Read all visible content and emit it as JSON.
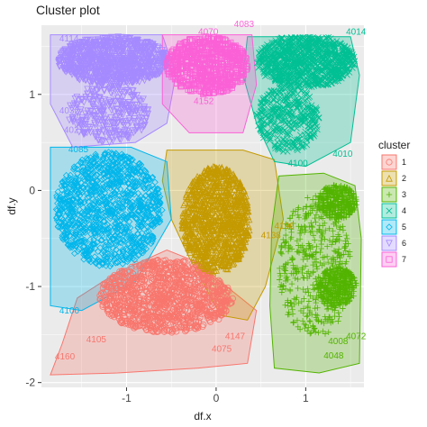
{
  "chart_data": {
    "type": "scatter",
    "title": "Cluster plot",
    "xlabel": "df.x",
    "ylabel": "df.y",
    "xlim": [
      -1.95,
      1.65
    ],
    "ylim": [
      -2.05,
      1.72
    ],
    "x_ticks": [
      -1,
      0,
      1
    ],
    "y_ticks": [
      -2,
      -1,
      0,
      1
    ],
    "x_tick_labels": [
      "-1",
      "0",
      "1"
    ],
    "y_tick_labels": [
      "-2",
      "-1",
      "0",
      "1"
    ],
    "grid": true,
    "panel_background": "#ebebeb",
    "legend": {
      "title": "cluster",
      "position": "right",
      "entries": [
        "1",
        "2",
        "3",
        "4",
        "5",
        "6",
        "7"
      ]
    },
    "series": [
      {
        "name": "1",
        "color": "#F8766D",
        "marker": "circle",
        "hull": [
          [
            -1.55,
            -1.12
          ],
          [
            -1.1,
            -0.85
          ],
          [
            -0.55,
            -0.62
          ],
          [
            -0.2,
            -0.75
          ],
          [
            0.05,
            -0.95
          ],
          [
            0.45,
            -1.25
          ],
          [
            0.35,
            -1.8
          ],
          [
            -0.2,
            -1.85
          ],
          [
            -1.1,
            -1.9
          ],
          [
            -1.85,
            -1.92
          ],
          [
            -1.72,
            -1.6
          ]
        ],
        "labels": [
          {
            "text": "4105",
            "x": -1.45,
            "y": -1.58
          },
          {
            "text": "4160",
            "x": -1.8,
            "y": -1.76
          },
          {
            "text": "4075",
            "x": -0.05,
            "y": -1.68
          },
          {
            "text": "4147",
            "x": 0.1,
            "y": -1.55
          }
        ],
        "clouds": [
          [
            -0.55,
            -1.1,
            0.75,
            0.38,
            1100
          ]
        ]
      },
      {
        "name": "2",
        "color": "#C49A00",
        "marker": "triangle",
        "hull": [
          [
            -0.55,
            0.42
          ],
          [
            0.3,
            0.42
          ],
          [
            0.65,
            0.32
          ],
          [
            0.75,
            -0.3
          ],
          [
            0.55,
            -1.0
          ],
          [
            0.35,
            -1.35
          ],
          [
            0.05,
            -1.3
          ],
          [
            -0.3,
            -0.7
          ],
          [
            -0.5,
            -0.3
          ],
          [
            -0.6,
            0.1
          ]
        ],
        "labels": [
          {
            "text": "4196",
            "x": 0.65,
            "y": -0.4
          },
          {
            "text": "4138",
            "x": 0.5,
            "y": -0.5
          }
        ],
        "clouds": [
          [
            0.0,
            -0.3,
            0.38,
            0.55,
            1000
          ]
        ]
      },
      {
        "name": "3",
        "color": "#53B400",
        "marker": "plus",
        "hull": [
          [
            0.7,
            0.15
          ],
          [
            1.2,
            0.18
          ],
          [
            1.55,
            0.05
          ],
          [
            1.62,
            -0.5
          ],
          [
            1.6,
            -1.8
          ],
          [
            1.15,
            -1.9
          ],
          [
            0.65,
            -1.85
          ],
          [
            0.6,
            -1.2
          ],
          [
            0.62,
            -0.4
          ]
        ],
        "labels": [
          {
            "text": "4072",
            "x": 1.45,
            "y": -1.55
          },
          {
            "text": "4048",
            "x": 1.2,
            "y": -1.75
          },
          {
            "text": "4008",
            "x": 1.25,
            "y": -1.6
          }
        ],
        "clouds": [
          [
            1.1,
            -0.8,
            0.4,
            0.75,
            450
          ],
          [
            1.35,
            -0.12,
            0.22,
            0.18,
            350
          ],
          [
            1.35,
            -1.0,
            0.22,
            0.2,
            350
          ]
        ]
      },
      {
        "name": "4",
        "color": "#00C094",
        "marker": "cross",
        "hull": [
          [
            0.35,
            1.6
          ],
          [
            1.5,
            1.6
          ],
          [
            1.6,
            1.2
          ],
          [
            1.5,
            0.5
          ],
          [
            1.0,
            0.25
          ],
          [
            0.65,
            0.3
          ],
          [
            0.45,
            0.7
          ],
          [
            0.3,
            1.2
          ]
        ],
        "labels": [
          {
            "text": "4014",
            "x": 1.45,
            "y": 1.62
          },
          {
            "text": "4100",
            "x": 0.8,
            "y": 0.25
          },
          {
            "text": "4010",
            "x": 1.3,
            "y": 0.35
          }
        ],
        "clouds": [
          [
            1.0,
            1.35,
            0.55,
            0.28,
            900
          ],
          [
            0.8,
            0.75,
            0.35,
            0.35,
            350
          ]
        ]
      },
      {
        "name": "5",
        "color": "#00B6EB",
        "marker": "diamond",
        "hull": [
          [
            -1.85,
            0.45
          ],
          [
            -0.95,
            0.45
          ],
          [
            -0.55,
            0.3
          ],
          [
            -0.5,
            -0.3
          ],
          [
            -0.9,
            -0.95
          ],
          [
            -1.5,
            -1.25
          ],
          [
            -1.85,
            -1.2
          ]
        ],
        "labels": [
          {
            "text": "4085",
            "x": -1.65,
            "y": 0.4
          },
          {
            "text": "4100",
            "x": -1.75,
            "y": -1.28
          }
        ],
        "clouds": [
          [
            -1.2,
            -0.2,
            0.6,
            0.6,
            1100
          ]
        ]
      },
      {
        "name": "6",
        "color": "#A58AFF",
        "marker": "triangle-down",
        "hull": [
          [
            -1.85,
            1.62
          ],
          [
            -0.6,
            1.62
          ],
          [
            -0.45,
            1.2
          ],
          [
            -0.55,
            0.7
          ],
          [
            -0.9,
            0.5
          ],
          [
            -1.6,
            0.45
          ],
          [
            -1.85,
            0.9
          ]
        ],
        "labels": [
          {
            "text": "4114",
            "x": -1.75,
            "y": 1.55
          },
          {
            "text": "4032",
            "x": -1.75,
            "y": 0.8
          },
          {
            "text": "4021",
            "x": -1.7,
            "y": 0.6
          }
        ],
        "clouds": [
          [
            -1.15,
            1.35,
            0.62,
            0.25,
            1000
          ],
          [
            -1.2,
            0.8,
            0.45,
            0.3,
            300
          ]
        ]
      },
      {
        "name": "7",
        "color": "#FB61D7",
        "marker": "square",
        "hull": [
          [
            -0.6,
            1.62
          ],
          [
            0.4,
            1.62
          ],
          [
            0.45,
            1.1
          ],
          [
            0.3,
            0.6
          ],
          [
            -0.3,
            0.6
          ],
          [
            -0.6,
            0.9
          ]
        ],
        "labels": [
          {
            "text": "4070",
            "x": -0.2,
            "y": 1.62
          },
          {
            "text": "4083",
            "x": 0.2,
            "y": 1.7
          },
          {
            "text": "4152",
            "x": -0.25,
            "y": 0.9
          }
        ],
        "clouds": [
          [
            -0.1,
            1.3,
            0.45,
            0.3,
            650
          ]
        ]
      }
    ]
  }
}
